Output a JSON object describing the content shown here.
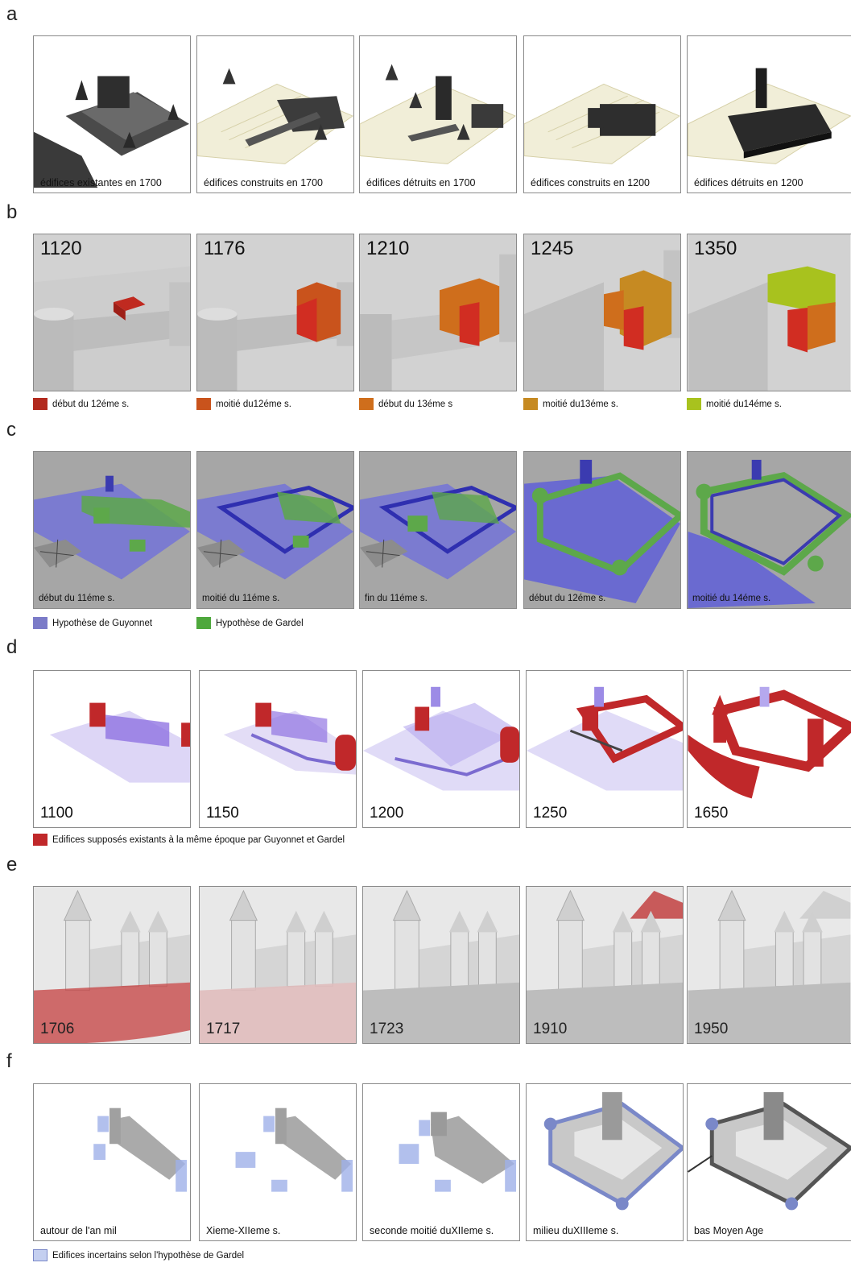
{
  "rows": {
    "a": {
      "letter": "a",
      "panels": [
        {
          "caption": "édifices existantes en 1700"
        },
        {
          "caption": "édifices construits en 1700"
        },
        {
          "caption": "édifices détruits en 1700"
        },
        {
          "caption": "édifices construits en 1200"
        },
        {
          "caption": "édifices détruits en 1200"
        }
      ]
    },
    "b": {
      "letter": "b",
      "panels": [
        {
          "year": "1120"
        },
        {
          "year": "1176"
        },
        {
          "year": "1210"
        },
        {
          "year": "1245"
        },
        {
          "year": "1350"
        }
      ],
      "legend": [
        {
          "label": "début du 12éme s.",
          "color": "#b22a1e"
        },
        {
          "label": "moitié du12éme s.",
          "color": "#c9531c"
        },
        {
          "label": "début du 13éme s",
          "color": "#cf6e1c"
        },
        {
          "label": "moitié du13éme s.",
          "color": "#c68a22"
        },
        {
          "label": "moitié du14éme s.",
          "color": "#a8c21e"
        }
      ]
    },
    "c": {
      "letter": "c",
      "panels": [
        {
          "caption": "début du 11éme s."
        },
        {
          "caption": "moitié du 11éme s."
        },
        {
          "caption": "fin du 11éme s."
        },
        {
          "caption": "début du 12éme s."
        },
        {
          "caption": "moitié du 14éme s."
        }
      ],
      "legend": [
        {
          "label": "Hypothèse de Guyonnet",
          "color": "#7b7bc8"
        },
        {
          "label": "Hypothèse de Gardel",
          "color": "#4ea83c"
        }
      ]
    },
    "d": {
      "letter": "d",
      "panels": [
        {
          "year": "1100"
        },
        {
          "year": "1150"
        },
        {
          "year": "1200"
        },
        {
          "year": "1250"
        },
        {
          "year": "1650"
        }
      ],
      "legend": [
        {
          "label": "Edifices supposés existants à la même époque par  Guyonnet et Gardel",
          "color": "#c0282a"
        }
      ]
    },
    "e": {
      "letter": "e",
      "panels": [
        {
          "year": "1706"
        },
        {
          "year": "1717"
        },
        {
          "year": "1723"
        },
        {
          "year": "1910"
        },
        {
          "year": "1950"
        }
      ]
    },
    "f": {
      "letter": "f",
      "panels": [
        {
          "caption": "autour de l'an mil"
        },
        {
          "caption": "Xieme-XIIeme s."
        },
        {
          "caption": "seconde moitié duXIIeme s."
        },
        {
          "caption": "milieu duXIIIeme s."
        },
        {
          "caption": "bas Moyen Age"
        }
      ],
      "legend": [
        {
          "label": "Edifices incertains selon l'hypothèse de Gardel",
          "color": "#c4cff0"
        }
      ]
    }
  }
}
